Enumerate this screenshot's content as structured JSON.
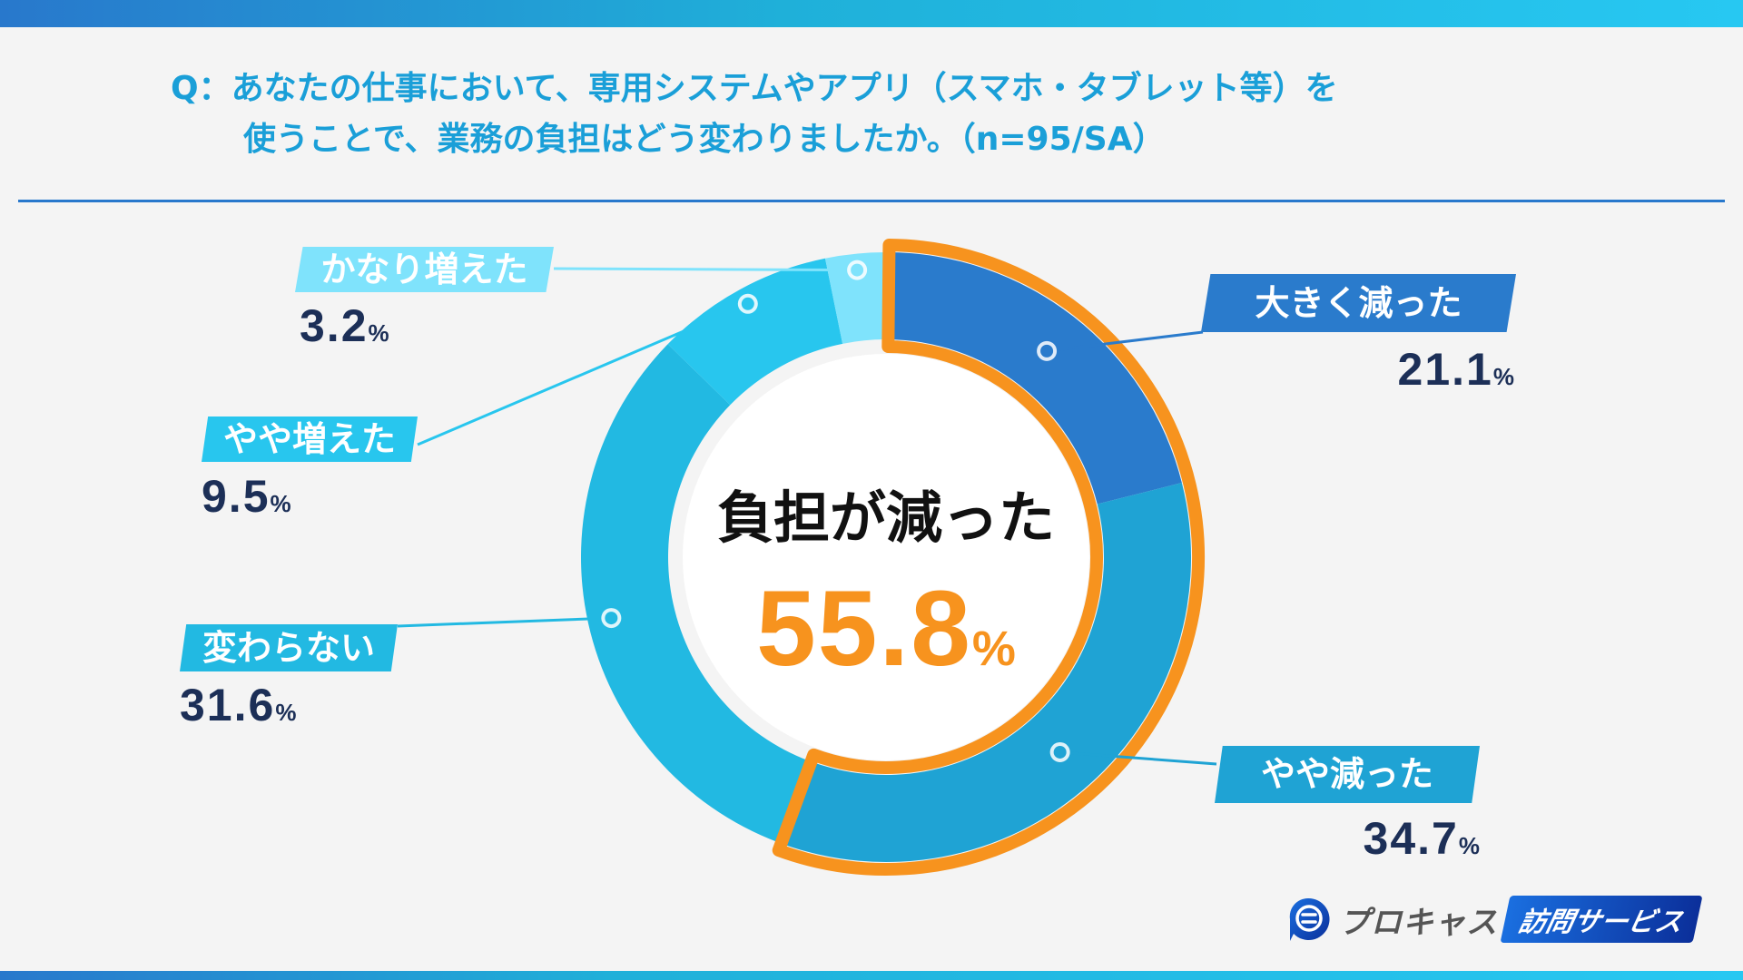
{
  "title": {
    "line1": "Q：あなたの仕事において、専用システムやアプリ（スマホ・タブレット等）を",
    "line2": "使うことで、業務の負担はどう変わりましたか。（n=95/SA）"
  },
  "center": {
    "label": "負担が減った",
    "value": "55.8",
    "unit": "%"
  },
  "labels": [
    {
      "name": "大きく減った",
      "value": "21.1",
      "unit": "%"
    },
    {
      "name": "やや減った",
      "value": "34.7",
      "unit": "%"
    },
    {
      "name": "変わらない",
      "value": "31.6",
      "unit": "%"
    },
    {
      "name": "やや増えた",
      "value": "9.5",
      "unit": "%"
    },
    {
      "name": "かなり増えた",
      "value": "3.2",
      "unit": "%"
    }
  ],
  "colors": {
    "big_decrease": "#2a7bcc",
    "slight_decrease": "#1fa3d4",
    "no_change": "#22b9e2",
    "slight_increase": "#28c6ee",
    "big_increase": "#7fe3fc",
    "highlight": "#f7931e",
    "value_text": "#1c2f57",
    "title_text": "#1a9fd8"
  },
  "logo": {
    "brand": "プロキャス",
    "service": "訪問サービス"
  },
  "chart_data": {
    "type": "pie",
    "subtype": "donut",
    "title": "Q：あなたの仕事において、専用システムやアプリ（スマホ・タブレット等）を使うことで、業務の負担はどう変わりましたか。（n=95/SA）",
    "categories": [
      "大きく減った",
      "やや減った",
      "変わらない",
      "やや増えた",
      "かなり増えた"
    ],
    "values": [
      21.1,
      34.7,
      31.6,
      9.5,
      3.2
    ],
    "unit": "%",
    "n": 95,
    "highlight": {
      "categories": [
        "大きく減った",
        "やや減った"
      ],
      "label": "負担が減った",
      "value": 55.8
    },
    "start_angle": "12 o'clock, clockwise",
    "legend": "callout labels"
  }
}
